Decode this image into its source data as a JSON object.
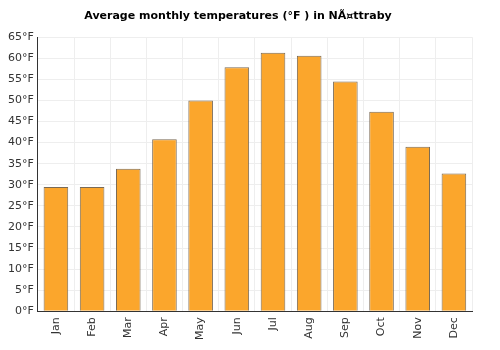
{
  "chart_data": {
    "type": "bar",
    "title": "Average monthly temperatures (°F ) in NÃ¤ttraby",
    "categories": [
      "Jan",
      "Feb",
      "Mar",
      "Apr",
      "May",
      "Jun",
      "Jul",
      "Aug",
      "Sep",
      "Oct",
      "Nov",
      "Dec"
    ],
    "values": [
      29.5,
      29.5,
      33.8,
      40.8,
      50.0,
      57.9,
      61.3,
      60.6,
      54.5,
      47.3,
      39.0,
      32.7
    ],
    "color": "#fba62c",
    "ylim": [
      0,
      65
    ],
    "yticks": [
      {
        "value": 0,
        "label": "0°F"
      },
      {
        "value": 5,
        "label": "5°F"
      },
      {
        "value": 10,
        "label": "10°F"
      },
      {
        "value": 15,
        "label": "15°F"
      },
      {
        "value": 20,
        "label": "20°F"
      },
      {
        "value": 25,
        "label": "25°F"
      },
      {
        "value": 30,
        "label": "30°F"
      },
      {
        "value": 35,
        "label": "35°F"
      },
      {
        "value": 40,
        "label": "40°F"
      },
      {
        "value": 45,
        "label": "45°F"
      },
      {
        "value": 50,
        "label": "50°F"
      },
      {
        "value": 55,
        "label": "55°F"
      },
      {
        "value": 60,
        "label": "60°F"
      },
      {
        "value": 65,
        "label": "65°F"
      }
    ],
    "grid": true
  }
}
